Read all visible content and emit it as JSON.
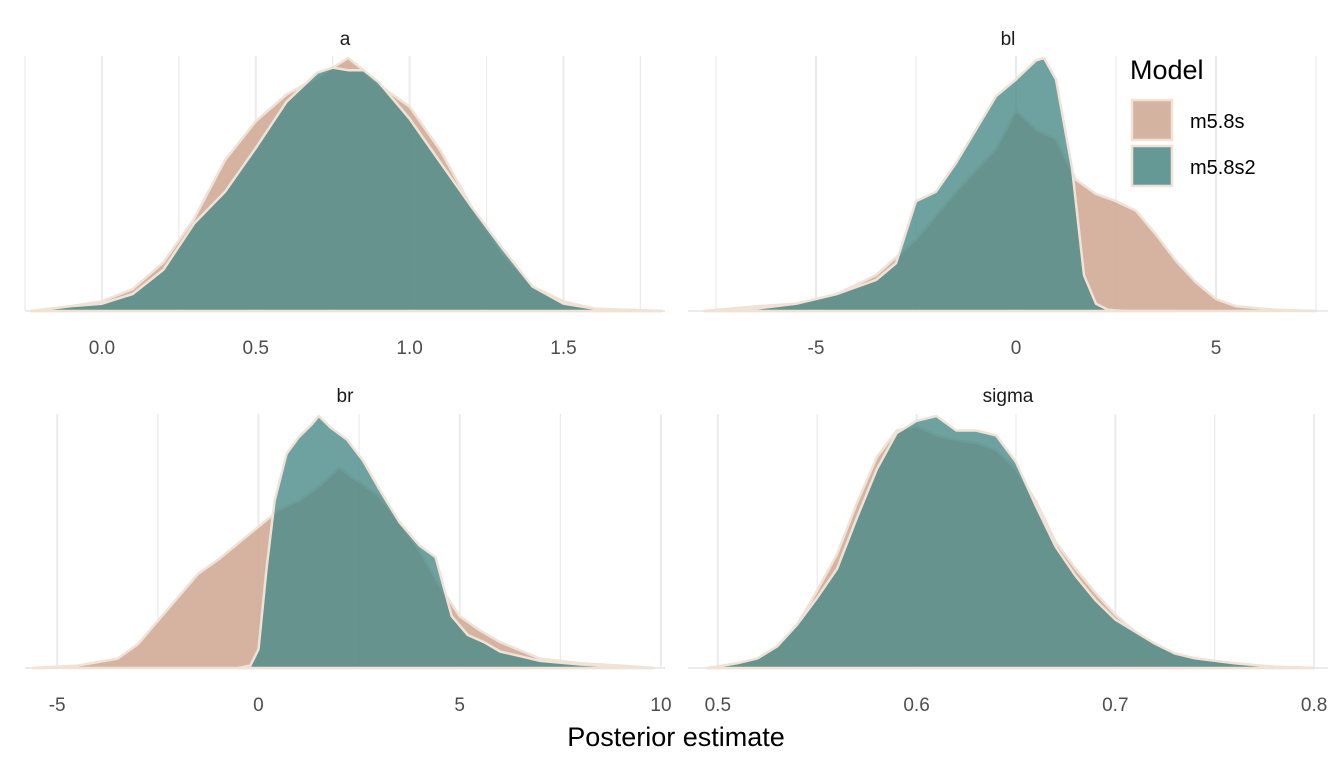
{
  "chart_data": {
    "type": "area",
    "subtype": "density",
    "xlabel": "Posterior estimate",
    "ylabel": "",
    "grid": true,
    "legend": {
      "title": "Model",
      "position": "top-right",
      "entries": [
        {
          "name": "m5.8s",
          "color": "#c9a18a"
        },
        {
          "name": "m5.8s2",
          "color": "#3f7f7c"
        }
      ]
    },
    "colors": {
      "m5.8s": "#d1ab96",
      "m5.8s2": "#4a8b88",
      "outline": "#f0e2d6",
      "grid": "#ebebeb",
      "overlap": "#668a80"
    },
    "panels": [
      {
        "title": "a",
        "xlim": [
          -0.25,
          1.83
        ],
        "xticks": [
          0.0,
          0.5,
          1.0,
          1.5
        ],
        "tick_labels": [
          "0.0",
          "0.5",
          "1.0",
          "1.5"
        ],
        "series": [
          {
            "name": "m5.8s",
            "x": [
              -0.23,
              -0.1,
              0.0,
              0.1,
              0.2,
              0.3,
              0.4,
              0.5,
              0.6,
              0.7,
              0.75,
              0.8,
              0.85,
              0.9,
              1.0,
              1.1,
              1.2,
              1.3,
              1.4,
              1.5,
              1.6,
              1.7,
              1.82
            ],
            "density": [
              0.0,
              0.02,
              0.04,
              0.09,
              0.2,
              0.38,
              0.62,
              0.78,
              0.89,
              0.96,
              1.0,
              1.04,
              0.99,
              0.93,
              0.84,
              0.66,
              0.43,
              0.24,
              0.1,
              0.04,
              0.01,
              0.005,
              0.0
            ]
          },
          {
            "name": "m5.8s2",
            "x": [
              -0.23,
              -0.1,
              0.0,
              0.1,
              0.2,
              0.3,
              0.4,
              0.5,
              0.6,
              0.7,
              0.75,
              0.8,
              0.85,
              0.9,
              1.0,
              1.1,
              1.2,
              1.3,
              1.4,
              1.5,
              1.6,
              1.7,
              1.82
            ],
            "density": [
              0.0,
              0.02,
              0.03,
              0.07,
              0.17,
              0.36,
              0.49,
              0.67,
              0.86,
              0.98,
              1.0,
              0.99,
              0.99,
              0.94,
              0.79,
              0.61,
              0.43,
              0.26,
              0.1,
              0.03,
              0.01,
              0.004,
              0.0
            ]
          }
        ]
      },
      {
        "title": "bl",
        "xlim": [
          -8.2,
          7.8
        ],
        "xticks": [
          -5,
          0,
          5
        ],
        "tick_labels": [
          "-5",
          "0",
          "5"
        ],
        "series": [
          {
            "name": "m5.8s",
            "x": [
              -7.8,
              -6.5,
              -5.5,
              -4.5,
              -3.5,
              -2.5,
              -1.5,
              -0.5,
              0.0,
              0.5,
              1.0,
              1.5,
              2.0,
              2.5,
              3.0,
              3.5,
              4.0,
              4.5,
              5.0,
              5.5,
              6.5,
              7.5
            ],
            "density": [
              0.0,
              0.02,
              0.03,
              0.07,
              0.15,
              0.3,
              0.5,
              0.68,
              0.84,
              0.76,
              0.72,
              0.55,
              0.49,
              0.46,
              0.42,
              0.32,
              0.21,
              0.12,
              0.05,
              0.02,
              0.005,
              0.0
            ]
          },
          {
            "name": "m5.8s2",
            "x": [
              -7.8,
              -6.5,
              -5.5,
              -4.5,
              -3.5,
              -3.0,
              -2.5,
              -2.0,
              -1.5,
              -1.0,
              -0.5,
              0.0,
              0.5,
              0.7,
              1.0,
              1.4,
              1.7,
              2.0,
              2.3,
              2.7,
              3.2,
              4.0
            ],
            "density": [
              0.0,
              0.01,
              0.03,
              0.07,
              0.13,
              0.2,
              0.46,
              0.5,
              0.62,
              0.76,
              0.9,
              0.97,
              1.05,
              1.06,
              0.97,
              0.6,
              0.15,
              0.03,
              0.005,
              0.0,
              0.0,
              0.0
            ]
          }
        ]
      },
      {
        "title": "br",
        "xlim": [
          -5.8,
          10.1
        ],
        "xticks": [
          -5,
          0,
          5,
          10
        ],
        "tick_labels": [
          "-5",
          "0",
          "5",
          "10"
        ],
        "series": [
          {
            "name": "m5.8s",
            "x": [
              -5.6,
              -4.5,
              -3.5,
              -3.0,
              -2.5,
              -2.0,
              -1.5,
              -1.0,
              -0.5,
              0.0,
              0.5,
              1.0,
              1.5,
              2.0,
              2.5,
              3.0,
              3.5,
              4.0,
              4.5,
              5.0,
              5.5,
              6.0,
              7.0,
              8.0,
              9.0,
              9.8
            ],
            "density": [
              0.0,
              0.01,
              0.04,
              0.1,
              0.2,
              0.3,
              0.4,
              0.46,
              0.53,
              0.6,
              0.67,
              0.71,
              0.77,
              0.85,
              0.79,
              0.73,
              0.62,
              0.5,
              0.35,
              0.22,
              0.16,
              0.11,
              0.04,
              0.02,
              0.01,
              0.0
            ]
          },
          {
            "name": "m5.8s2",
            "x": [
              -0.5,
              -0.2,
              0.0,
              0.2,
              0.4,
              0.7,
              1.0,
              1.3,
              1.5,
              1.8,
              2.2,
              2.6,
              3.0,
              3.5,
              4.0,
              4.4,
              4.8,
              5.2,
              5.6,
              6.0,
              6.5,
              7.0,
              8.0,
              9.0,
              9.8
            ],
            "density": [
              0.0,
              0.01,
              0.08,
              0.42,
              0.71,
              0.91,
              0.98,
              1.03,
              1.07,
              1.02,
              0.97,
              0.88,
              0.76,
              0.62,
              0.52,
              0.47,
              0.22,
              0.14,
              0.11,
              0.07,
              0.05,
              0.03,
              0.015,
              0.005,
              0.0
            ]
          }
        ]
      },
      {
        "title": "sigma",
        "xlim": [
          0.485,
          0.807
        ],
        "xticks": [
          0.5,
          0.6,
          0.7,
          0.8
        ],
        "tick_labels": [
          "0.5",
          "0.6",
          "0.7",
          "0.8"
        ],
        "series": [
          {
            "name": "m5.8s",
            "x": [
              0.495,
              0.51,
              0.52,
              0.53,
              0.54,
              0.55,
              0.56,
              0.57,
              0.58,
              0.59,
              0.6,
              0.61,
              0.62,
              0.63,
              0.64,
              0.65,
              0.66,
              0.67,
              0.68,
              0.69,
              0.7,
              0.71,
              0.72,
              0.73,
              0.74,
              0.75,
              0.76,
              0.78,
              0.8
            ],
            "density": [
              0.0,
              0.02,
              0.04,
              0.09,
              0.18,
              0.32,
              0.47,
              0.68,
              0.87,
              0.98,
              1.0,
              0.96,
              0.94,
              0.93,
              0.9,
              0.82,
              0.69,
              0.52,
              0.41,
              0.31,
              0.22,
              0.15,
              0.1,
              0.06,
              0.04,
              0.03,
              0.02,
              0.005,
              0.0
            ]
          },
          {
            "name": "m5.8s2",
            "x": [
              0.495,
              0.51,
              0.52,
              0.53,
              0.54,
              0.55,
              0.56,
              0.57,
              0.58,
              0.59,
              0.6,
              0.61,
              0.62,
              0.63,
              0.64,
              0.65,
              0.66,
              0.67,
              0.68,
              0.69,
              0.7,
              0.71,
              0.72,
              0.73,
              0.74,
              0.75,
              0.76,
              0.78,
              0.8
            ],
            "density": [
              0.0,
              0.02,
              0.04,
              0.09,
              0.18,
              0.29,
              0.41,
              0.62,
              0.82,
              0.97,
              1.02,
              1.04,
              0.98,
              0.98,
              0.96,
              0.85,
              0.67,
              0.5,
              0.38,
              0.28,
              0.2,
              0.15,
              0.1,
              0.06,
              0.04,
              0.03,
              0.02,
              0.005,
              0.0
            ]
          }
        ]
      }
    ]
  }
}
